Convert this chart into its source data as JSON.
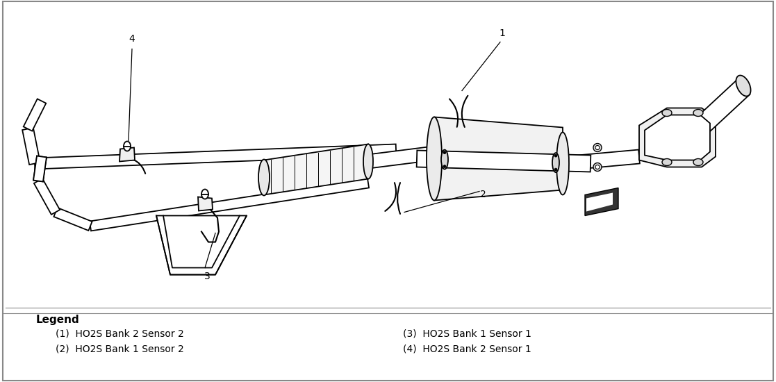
{
  "background_color": "#ffffff",
  "legend_title": "Legend",
  "legend_items_left": [
    "(1)  HO2S Bank 2 Sensor 2",
    "(2)  HO2S Bank 1 Sensor 2"
  ],
  "legend_items_right": [
    "(3)  HO2S Bank 1 Sensor 1",
    "(4)  HO2S Bank 2 Sensor 1"
  ],
  "label_1": "1",
  "label_2": "2",
  "label_3": "3",
  "label_4": "4",
  "line_color": "#000000",
  "lw_pipe": 1.5,
  "lw_thin": 0.8
}
